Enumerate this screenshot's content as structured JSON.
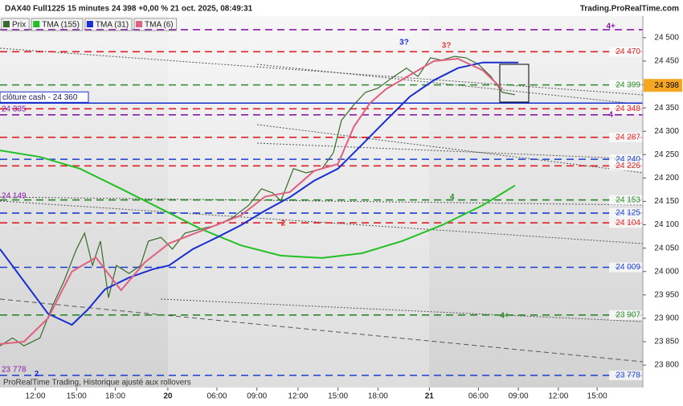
{
  "chart_data": {
    "type": "line",
    "title": "DAX40 Full1225 15 minutes 24 398 +0,00 % 21 oct. 2025, 08:49:31",
    "source": "Trading.ProRealTime.com",
    "footer": "ProRealTime Trading, Historique ajusté aux rollovers",
    "xlim": [
      0,
      563
    ],
    "xticks": [
      {
        "value": 31,
        "label": "12:00"
      },
      {
        "value": 67,
        "label": "15:00"
      },
      {
        "value": 101,
        "label": "18:00"
      },
      {
        "value": 147,
        "label": "20"
      },
      {
        "value": 190,
        "label": "06:00"
      },
      {
        "value": 225,
        "label": "09:00"
      },
      {
        "value": 261,
        "label": "12:00"
      },
      {
        "value": 296,
        "label": "15:00"
      },
      {
        "value": 331,
        "label": "18:00"
      },
      {
        "value": 376,
        "label": "21"
      },
      {
        "value": 419,
        "label": "06:00"
      },
      {
        "value": 454,
        "label": "09:00"
      },
      {
        "value": 489,
        "label": "12:00"
      },
      {
        "value": 523,
        "label": "15:00"
      }
    ],
    "ylim": [
      23752,
      24529
    ],
    "yticks": [
      {
        "value": 24500,
        "label": "24 500"
      },
      {
        "value": 24450,
        "label": "24 450"
      },
      {
        "value": 24400,
        "label": "24 400"
      },
      {
        "value": 24350,
        "label": "24 350"
      },
      {
        "value": 24300,
        "label": "24 300"
      },
      {
        "value": 24250,
        "label": "24 250"
      },
      {
        "value": 24200,
        "label": "24 200"
      },
      {
        "value": 24150,
        "label": "24 150"
      },
      {
        "value": 24100,
        "label": "24 100"
      },
      {
        "value": 24050,
        "label": "24 050"
      },
      {
        "value": 24000,
        "label": "24 000"
      },
      {
        "value": 23950,
        "label": "23 950"
      },
      {
        "value": 23900,
        "label": "23 900"
      },
      {
        "value": 23850,
        "label": "23 850"
      },
      {
        "value": 23800,
        "label": "23 800"
      }
    ],
    "series": [
      {
        "name": "Prix",
        "color": "#3a6b2a",
        "x": [
          0,
          11,
          21,
          35,
          46,
          56,
          67,
          74,
          81,
          88,
          95,
          102,
          113,
          123,
          130,
          141,
          151,
          162,
          176,
          190,
          204,
          218,
          229,
          239,
          246,
          257,
          268,
          282,
          292,
          299,
          310,
          320,
          331,
          345,
          356,
          366,
          377,
          387,
          398,
          408,
          419,
          430,
          440,
          451
        ],
        "values": [
          23841,
          23858,
          23841,
          23858,
          23927,
          23979,
          24048,
          24082,
          24013,
          24065,
          23944,
          24013,
          23996,
          24013,
          24065,
          24073,
          24048,
          24082,
          24091,
          24099,
          24116,
          24142,
          24177,
          24168,
          24151,
          24220,
          24211,
          24220,
          24254,
          24323,
          24357,
          24383,
          24392,
          24417,
          24435,
          24417,
          24457,
          24452,
          24460,
          24457,
          24443,
          24417,
          24383,
          24378
        ]
      },
      {
        "name": "TMA (155)",
        "color": "#22c022",
        "x": [
          0,
          35,
          70,
          106,
          141,
          176,
          211,
          246,
          282,
          317,
          352,
          387,
          423,
          451
        ],
        "values": [
          24259,
          24245,
          24220,
          24177,
          24134,
          24091,
          24056,
          24034,
          24029,
          24039,
          24065,
          24099,
          24142,
          24184
        ]
      },
      {
        "name": "TMA (31)",
        "color": "#1a2fd0",
        "x": [
          0,
          21,
          42,
          63,
          77,
          92,
          113,
          134,
          148,
          169,
          190,
          211,
          232,
          254,
          275,
          296,
          317,
          338,
          359,
          380,
          401,
          423,
          437,
          454
        ],
        "values": [
          24048,
          23979,
          23910,
          23886,
          23919,
          23962,
          23987,
          24005,
          24013,
          24048,
          24073,
          24099,
          24130,
          24159,
          24194,
          24220,
          24271,
          24323,
          24374,
          24409,
          24435,
          24447,
          24447,
          24447
        ]
      },
      {
        "name": "TMA (6)",
        "color": "#e06080",
        "x": [
          0,
          21,
          42,
          63,
          84,
          106,
          127,
          148,
          169,
          190,
          211,
          232,
          254,
          275,
          296,
          310,
          324,
          338,
          359,
          380,
          401,
          423,
          440
        ],
        "values": [
          23845,
          23850,
          23900,
          24000,
          24030,
          23960,
          24020,
          24060,
          24080,
          24100,
          24120,
          24160,
          24170,
          24215,
          24230,
          24310,
          24360,
          24390,
          24420,
          24450,
          24455,
          24430,
          24390
        ]
      }
    ],
    "levels": [
      {
        "value": 24517,
        "color": "#8a1aa8"
      },
      {
        "value": 24470,
        "label": "24 470",
        "color": "#e02020"
      },
      {
        "value": 24399,
        "label": "24 399",
        "color": "#2a8a2a"
      },
      {
        "value": 24348,
        "label": "24 348",
        "color": "#e02020"
      },
      {
        "value": 24335,
        "color": "#8a1aa8"
      },
      {
        "value": 24287,
        "label": "24 287",
        "color": "#e02020"
      },
      {
        "value": 24240,
        "label": "24 240",
        "color": "#1a3fd0"
      },
      {
        "value": 24226,
        "label": "24 226",
        "color": "#e02020"
      },
      {
        "value": 24153,
        "label": "24 153",
        "color": "#2a8a2a"
      },
      {
        "value": 24125,
        "label": "24 125",
        "color": "#1a3fd0"
      },
      {
        "value": 24104,
        "label": "24 104",
        "color": "#e02020"
      },
      {
        "value": 24009,
        "label": "24 009",
        "color": "#1a3fd0"
      },
      {
        "value": 23907,
        "label": "23 907",
        "color": "#2a8a2a"
      },
      {
        "value": 23778,
        "label": "23 778",
        "color": "#1a3fd0"
      }
    ],
    "left_labels": [
      {
        "value": 24335,
        "label": "24 335"
      },
      {
        "value": 24149,
        "label": "24 149"
      },
      {
        "value": 23778,
        "label": "23 778"
      }
    ],
    "cash_close": {
      "value": 24360,
      "label": "clôture cash - 24 360",
      "color": "#1a2fd0"
    },
    "last_price": {
      "value": 24398,
      "label": "24 398"
    },
    "annotations": [
      {
        "text": "3?",
        "x": 354,
        "y": 24490,
        "color": "#1a2fd0"
      },
      {
        "text": "3?",
        "x": 391,
        "y": 24483,
        "color": "#e04040"
      },
      {
        "text": "4+",
        "x": 535,
        "y": 24524,
        "color": "#8a1aa8"
      },
      {
        "text": "4",
        "x": 535,
        "y": 24335,
        "color": "#8a1aa8"
      },
      {
        "text": "4",
        "x": 396,
        "y": 24159,
        "color": "#2a8a2a"
      },
      {
        "text": "2",
        "x": 248,
        "y": 24103,
        "color": "#e02020"
      },
      {
        "text": "4+",
        "x": 442,
        "y": 23905,
        "color": "#2a8a2a"
      },
      {
        "text": "2",
        "x": 32,
        "y": 23781,
        "color": "#1a2fd0"
      }
    ]
  }
}
